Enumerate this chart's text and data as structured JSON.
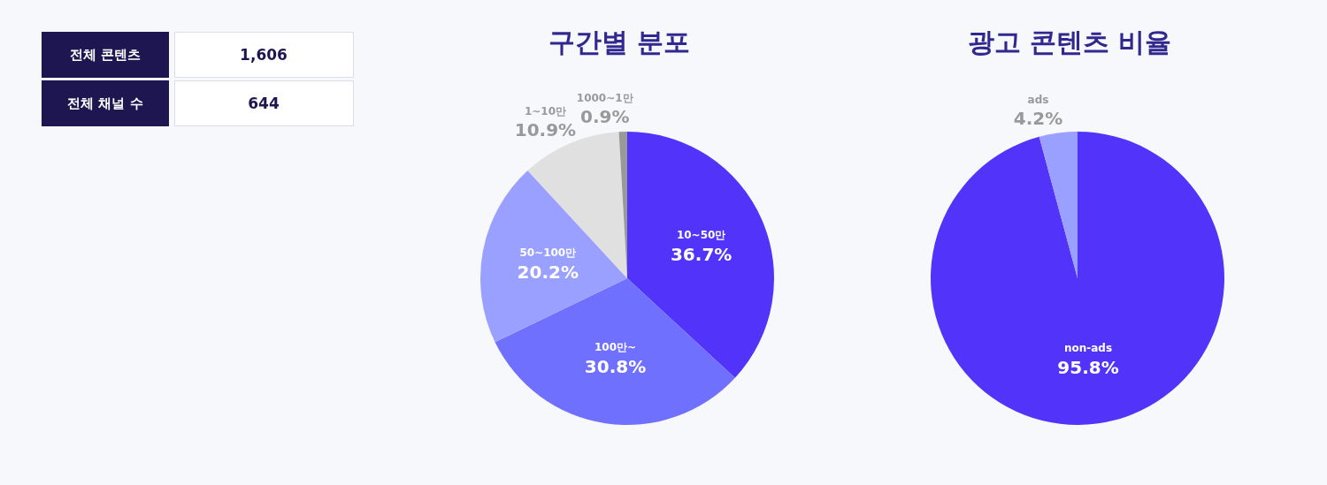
{
  "chart_data": [
    {
      "type": "other",
      "categories": [
        "전체 콘텐츠",
        "전체 채널 수"
      ],
      "value_labels": [
        "1,606",
        "644"
      ]
    },
    {
      "type": "pie",
      "title": "구간별 분포",
      "categories": [
        "10~50만",
        "100만~",
        "50~100만",
        "1~10만",
        "1000~1만"
      ],
      "values": [
        36.7,
        30.8,
        20.2,
        10.9,
        0.9
      ],
      "value_labels": [
        "36.7%",
        "30.8%",
        "20.2%",
        "10.9%",
        "0.9%"
      ],
      "colors": [
        "#5233fa",
        "#7070ff",
        "#9aa0ff",
        "#e0e0e0",
        "#999999"
      ]
    },
    {
      "type": "pie",
      "title": "광고 콘텐츠 비율",
      "categories": [
        "non-ads",
        "ads"
      ],
      "values": [
        95.8,
        4.2
      ],
      "value_labels": [
        "95.8%",
        "4.2%"
      ],
      "colors": [
        "#5233fa",
        "#9aa0ff"
      ]
    }
  ]
}
